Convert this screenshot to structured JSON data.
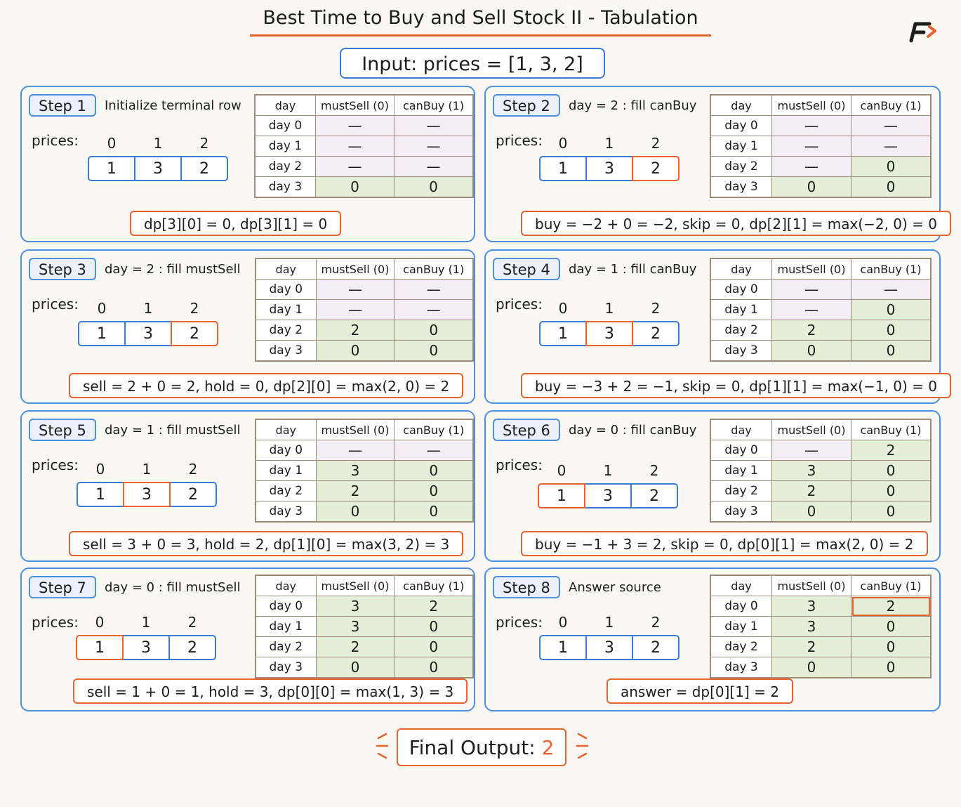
{
  "title": "Best Time to Buy and Sell Stock II - Tabulation",
  "input": "Input:  prices  =  [1, 3, 2]",
  "prices_label": "prices:",
  "indices": [
    "0",
    "1",
    "2"
  ],
  "prices": [
    "1",
    "3",
    "2"
  ],
  "table_headers": [
    "day",
    "mustSell (0)",
    "canBuy (1)"
  ],
  "row_labels": [
    "day 0",
    "day 1",
    "day 2",
    "day 3"
  ],
  "colors": {
    "accent": "#e8622e",
    "panel_border": "#4a8fe0",
    "filled_cell": "#e4efd8",
    "empty_cell": "#f3eef6"
  },
  "steps": [
    {
      "label": "Step 1",
      "desc": "Initialize terminal row",
      "highlight": -1,
      "cells": [
        [
          "—",
          "—"
        ],
        [
          "—",
          "—"
        ],
        [
          "—",
          "—"
        ],
        [
          "0",
          "0"
        ]
      ],
      "filled": [
        [
          false,
          false
        ],
        [
          false,
          false
        ],
        [
          false,
          false
        ],
        [
          true,
          true
        ]
      ],
      "formula": "dp[3][0]  =  0,  dp[3][1]  =  0"
    },
    {
      "label": "Step 2",
      "desc": "day  =  2 :  fill  canBuy",
      "highlight": 2,
      "cells": [
        [
          "—",
          "—"
        ],
        [
          "—",
          "—"
        ],
        [
          "—",
          "0"
        ],
        [
          "0",
          "0"
        ]
      ],
      "filled": [
        [
          false,
          false
        ],
        [
          false,
          false
        ],
        [
          false,
          true
        ],
        [
          true,
          true
        ]
      ],
      "formula": "buy  =  −2 + 0 = −2,  skip  =  0,  dp[2][1]  =  max(−2, 0) = 0"
    },
    {
      "label": "Step 3",
      "desc": "day  =  2 :  fill  mustSell",
      "highlight": 2,
      "cells": [
        [
          "—",
          "—"
        ],
        [
          "—",
          "—"
        ],
        [
          "2",
          "0"
        ],
        [
          "0",
          "0"
        ]
      ],
      "filled": [
        [
          false,
          false
        ],
        [
          false,
          false
        ],
        [
          true,
          true
        ],
        [
          true,
          true
        ]
      ],
      "formula": "sell  =  2  +  0  =  2,  hold  =  0,  dp[2][0]  =  max(2, 0) = 2"
    },
    {
      "label": "Step 4",
      "desc": "day  =  1 :  fill  canBuy",
      "highlight": 1,
      "cells": [
        [
          "—",
          "—"
        ],
        [
          "—",
          "0"
        ],
        [
          "2",
          "0"
        ],
        [
          "0",
          "0"
        ]
      ],
      "filled": [
        [
          false,
          false
        ],
        [
          false,
          true
        ],
        [
          true,
          true
        ],
        [
          true,
          true
        ]
      ],
      "formula": "buy  =  −3  +  2  =  −1,  skip  =  0,  dp[1][1]  =  max(−1, 0) = 0"
    },
    {
      "label": "Step 5",
      "desc": "day  =  1 :  fill  mustSell",
      "highlight": 1,
      "cells": [
        [
          "—",
          "—"
        ],
        [
          "3",
          "0"
        ],
        [
          "2",
          "0"
        ],
        [
          "0",
          "0"
        ]
      ],
      "filled": [
        [
          false,
          false
        ],
        [
          true,
          true
        ],
        [
          true,
          true
        ],
        [
          true,
          true
        ]
      ],
      "formula": "sell  =  3  +  0  =  3,  hold  =  2,  dp[1][0]  =  max(3, 2) = 3"
    },
    {
      "label": "Step 6",
      "desc": "day  =  0 :  fill  canBuy",
      "highlight": 0,
      "cells": [
        [
          "—",
          "2"
        ],
        [
          "3",
          "0"
        ],
        [
          "2",
          "0"
        ],
        [
          "0",
          "0"
        ]
      ],
      "filled": [
        [
          false,
          true
        ],
        [
          true,
          true
        ],
        [
          true,
          true
        ],
        [
          true,
          true
        ]
      ],
      "formula": "buy  =  −1  +  3  =  2,  skip  =  0,  dp[0][1]  =  max(2, 0) = 2"
    },
    {
      "label": "Step 7",
      "desc": "day  =  0 :  fill  mustSell",
      "highlight": 0,
      "cells": [
        [
          "3",
          "2"
        ],
        [
          "3",
          "0"
        ],
        [
          "2",
          "0"
        ],
        [
          "0",
          "0"
        ]
      ],
      "filled": [
        [
          true,
          true
        ],
        [
          true,
          true
        ],
        [
          true,
          true
        ],
        [
          true,
          true
        ]
      ],
      "formula": "sell  =  1  +  0  =  1,  hold  =  3,  dp[0][0]  =  max(1, 3) = 3"
    },
    {
      "label": "Step 8",
      "desc": "Answer  source",
      "highlight": -1,
      "cells": [
        [
          "3",
          "2"
        ],
        [
          "3",
          "0"
        ],
        [
          "2",
          "0"
        ],
        [
          "0",
          "0"
        ]
      ],
      "filled": [
        [
          true,
          true
        ],
        [
          true,
          true
        ],
        [
          true,
          true
        ],
        [
          true,
          true
        ]
      ],
      "formula": "answer  =  dp[0][1]  =  2",
      "answer_cell": [
        0,
        1
      ]
    }
  ],
  "final": {
    "label": "Final Output:",
    "value": "2"
  }
}
